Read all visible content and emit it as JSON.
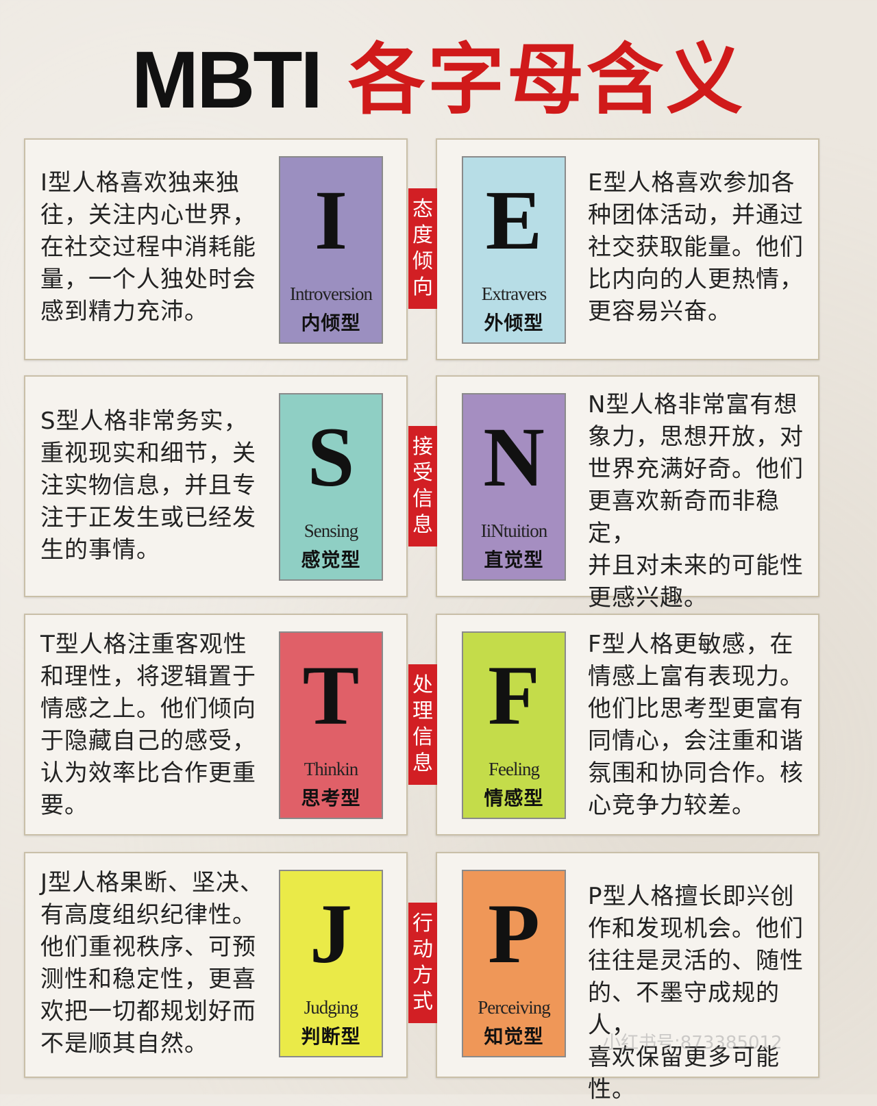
{
  "title": {
    "en": "MBTI",
    "cn": "各字母含义"
  },
  "colors": {
    "title_red": "#d01a1a",
    "tag_red": "#d21f24",
    "card_I": "#9b8fc0",
    "card_E": "#b7dde6",
    "card_S": "#8fcfc4",
    "card_N": "#a58ec1",
    "card_T": "#e06068",
    "card_F": "#c4dc4a",
    "card_J": "#eaea48",
    "card_P": "#ef9758"
  },
  "rows": [
    {
      "tag": "态度倾向",
      "left": {
        "letter": "I",
        "en": "Introversion",
        "cn": "内倾型",
        "desc": "I型人格喜欢独来独\n往，关注内心世界，\n在社交过程中消耗能\n量，一个人独处时会\n感到精力充沛。"
      },
      "right": {
        "letter": "E",
        "en": "Extravers",
        "cn": "外倾型",
        "desc": "E型人格喜欢参加各\n种团体活动，并通过\n社交获取能量。他们\n比内向的人更热情，\n更容易兴奋。"
      }
    },
    {
      "tag": "接受信息",
      "left": {
        "letter": "S",
        "en": "Sensing",
        "cn": "感觉型",
        "desc": "S型人格非常务实，\n重视现实和细节，关\n注实物信息，并且专\n注于正发生或已经发\n生的事情。"
      },
      "right": {
        "letter": "N",
        "en": "IiNtuition",
        "cn": "直觉型",
        "desc": "N型人格非常富有想\n象力，思想开放，对\n世界充满好奇。他们\n更喜欢新奇而非稳定，\n并且对未来的可能性\n更感兴趣。"
      }
    },
    {
      "tag": "处理信息",
      "left": {
        "letter": "T",
        "en": "Thinkin",
        "cn": "思考型",
        "desc": "T型人格注重客观性\n和理性，将逻辑置于\n情感之上。他们倾向\n于隐藏自己的感受，\n认为效率比合作更重\n要。"
      },
      "right": {
        "letter": "F",
        "en": "Feeling",
        "cn": "情感型",
        "desc": "F型人格更敏感，在\n情感上富有表现力。\n他们比思考型更富有\n同情心，会注重和谐\n氛围和协同合作。核\n心竞争力较差。"
      }
    },
    {
      "tag": "行动方式",
      "left": {
        "letter": "J",
        "en": "Judging",
        "cn": "判断型",
        "desc": "J型人格果断、坚决、\n有高度组织纪律性。\n他们重视秩序、可预\n测性和稳定性，更喜\n欢把一切都规划好而\n不是顺其自然。"
      },
      "right": {
        "letter": "P",
        "en": "Perceiving",
        "cn": "知觉型",
        "desc": "P型人格擅长即兴创\n作和发现机会。他们\n往往是灵活的、随性\n的、不墨守成规的人，\n喜欢保留更多可能性。"
      }
    }
  ],
  "watermark": "小红书号:873385012"
}
